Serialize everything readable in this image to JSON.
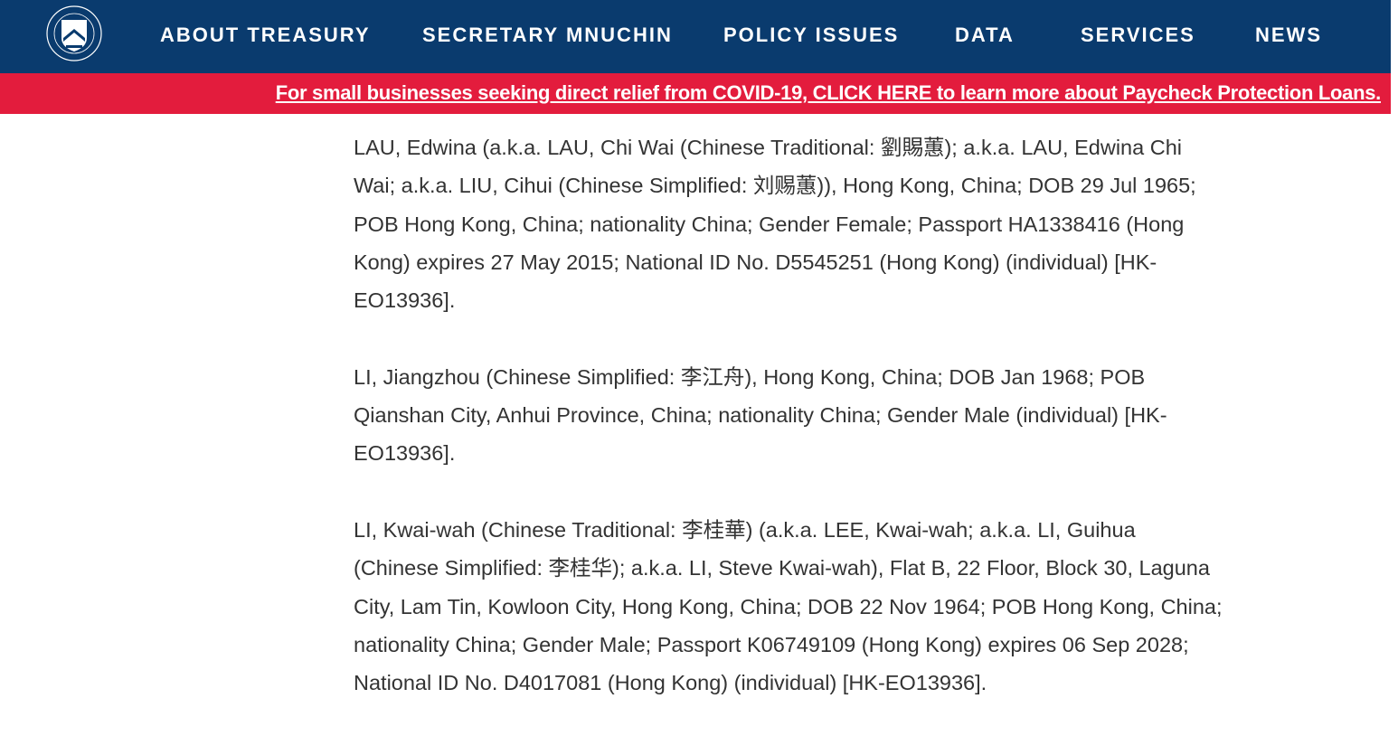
{
  "nav": {
    "logo_alt": "The Department of the Treasury 1789",
    "items": [
      {
        "label": "ABOUT TREASURY"
      },
      {
        "label": "SECRETARY MNUCHIN"
      },
      {
        "label": "POLICY ISSUES"
      },
      {
        "label": "DATA"
      },
      {
        "label": "SERVICES"
      },
      {
        "label": "NEWS"
      }
    ]
  },
  "banner": {
    "text": "For small businesses seeking direct relief from COVID-19, CLICK HERE to learn more about Paycheck Protection Loans."
  },
  "entries": [
    {
      "text": "LAU, Edwina (a.k.a. LAU, Chi Wai (Chinese Traditional: 劉賜蕙); a.k.a. LAU, Edwina Chi Wai; a.k.a. LIU, Cihui (Chinese Simplified: 刘赐蕙)), Hong Kong, China; DOB 29 Jul 1965; POB Hong Kong, China; nationality China; Gender Female; Passport HA1338416 (Hong Kong) expires 27 May 2015; National ID No. D5545251 (Hong Kong) (individual) [HK-EO13936]."
    },
    {
      "text": "LI, Jiangzhou (Chinese Simplified: 李江舟), Hong Kong, China; DOB Jan 1968; POB Qianshan City, Anhui Province, China; nationality China; Gender Male (individual) [HK-EO13936]."
    },
    {
      "text": "LI, Kwai-wah (Chinese Traditional: 李桂華) (a.k.a. LEE, Kwai-wah; a.k.a. LI, Guihua (Chinese Simplified: 李桂华); a.k.a. LI, Steve Kwai-wah), Flat B, 22 Floor, Block 30, Laguna City, Lam Tin, Kowloon City, Hong Kong, China; DOB 22 Nov 1964; POB Hong Kong, China; nationality China; Gender Male; Passport K06749109 (Hong Kong) expires 06 Sep 2028; National ID No. D4017081 (Hong Kong) (individual) [HK-EO13936]."
    }
  ],
  "colors": {
    "nav": "#0a3b6e",
    "banner": "#e31c3d",
    "text": "#333333"
  }
}
